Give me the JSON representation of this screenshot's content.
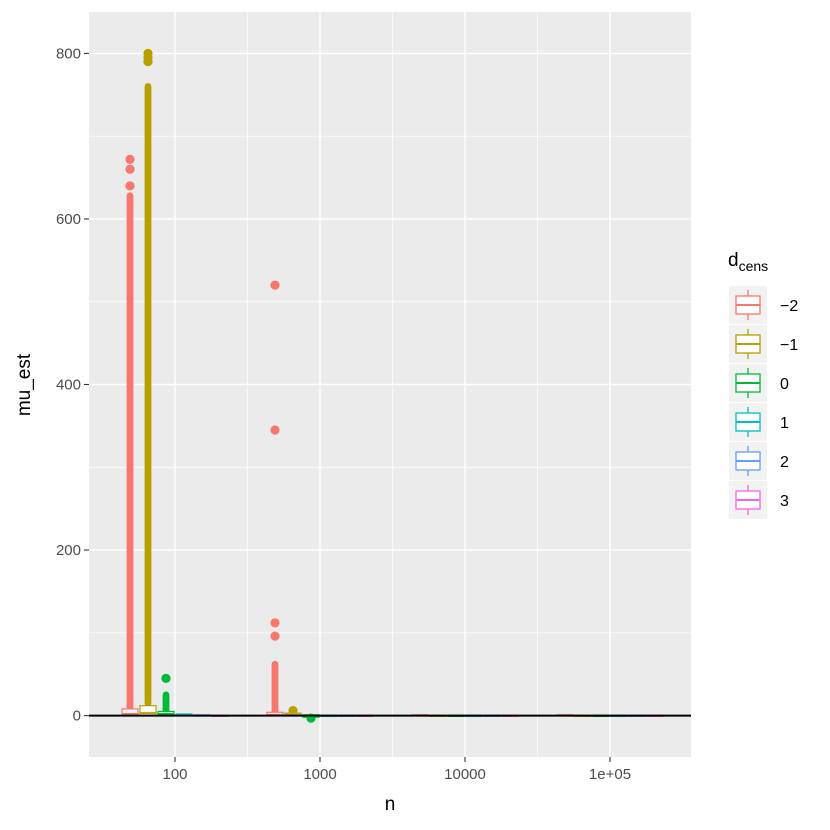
{
  "chart_data": {
    "type": "boxplot",
    "xlabel": "n",
    "ylabel": "mu_est",
    "x_scale": "log10",
    "x_ticks": [
      "100",
      "1000",
      "10000",
      "1e+05"
    ],
    "x_tick_values": [
      100,
      1000,
      10000,
      100000
    ],
    "ylim": [
      -50,
      850
    ],
    "y_ticks": [
      0,
      200,
      400,
      600,
      800
    ],
    "reference_line_y": 0,
    "grid": true,
    "legend": {
      "title_main": "d",
      "title_sub": "cens",
      "position": "right",
      "entries": [
        "−2",
        "−1",
        "0",
        "1",
        "2",
        "3"
      ]
    },
    "groups": [
      {
        "n": 100,
        "d_cens": "−2",
        "color": "#F8766D",
        "box_q1": 0,
        "box_median": 2,
        "box_q3": 8,
        "outlier_range": [
          10,
          628
        ],
        "outliers": [
          640,
          660,
          672
        ]
      },
      {
        "n": 100,
        "d_cens": "−1",
        "color": "#B79F00",
        "box_q1": 0,
        "box_median": 3,
        "box_q3": 12,
        "outlier_range": [
          15,
          760
        ],
        "outliers": [
          790,
          795,
          800
        ]
      },
      {
        "n": 100,
        "d_cens": "0",
        "color": "#00BA38",
        "box_q1": 0,
        "box_median": 2,
        "box_q3": 5,
        "outlier_range": [
          6,
          25
        ],
        "outliers": [
          45
        ]
      },
      {
        "n": 100,
        "d_cens": "1",
        "color": "#00BFC4",
        "box_q1": 0,
        "box_median": 1,
        "box_q3": 2,
        "outliers": []
      },
      {
        "n": 100,
        "d_cens": "2",
        "color": "#619CFF",
        "box_q1": 0,
        "box_median": 0,
        "box_q3": 1,
        "outliers": []
      },
      {
        "n": 100,
        "d_cens": "3",
        "color": "#F564E3",
        "box_q1": 0,
        "box_median": 0,
        "box_q3": 0,
        "outliers": []
      },
      {
        "n": 1000,
        "d_cens": "−2",
        "color": "#F8766D",
        "box_q1": 0,
        "box_median": 1,
        "box_q3": 4,
        "outlier_range": [
          5,
          62
        ],
        "outliers": [
          96,
          112,
          345,
          520
        ]
      },
      {
        "n": 1000,
        "d_cens": "−1",
        "color": "#B79F00",
        "box_q1": 0,
        "box_median": 1,
        "box_q3": 3,
        "outliers": [
          6
        ]
      },
      {
        "n": 1000,
        "d_cens": "0",
        "color": "#00BA38",
        "box_q1": -2,
        "box_median": 0,
        "box_q3": 1,
        "outliers": [
          -3
        ]
      },
      {
        "n": 1000,
        "d_cens": "1",
        "color": "#00BFC4",
        "box_q1": 0,
        "box_median": 0,
        "box_q3": 0,
        "outliers": []
      },
      {
        "n": 1000,
        "d_cens": "2",
        "color": "#619CFF",
        "box_q1": 0,
        "box_median": 0,
        "box_q3": 0,
        "outliers": []
      },
      {
        "n": 1000,
        "d_cens": "3",
        "color": "#F564E3",
        "box_q1": 0,
        "box_median": 0,
        "box_q3": 0,
        "outliers": []
      },
      {
        "n": 10000,
        "d_cens": "−2",
        "color": "#F8766D",
        "box_q1": 0,
        "box_median": 0,
        "box_q3": 1,
        "outliers": []
      },
      {
        "n": 10000,
        "d_cens": "−1",
        "color": "#B79F00",
        "box_q1": 0,
        "box_median": 0,
        "box_q3": 0,
        "outliers": []
      },
      {
        "n": 10000,
        "d_cens": "0",
        "color": "#00BA38",
        "box_q1": 0,
        "box_median": 0,
        "box_q3": 0,
        "outliers": []
      },
      {
        "n": 10000,
        "d_cens": "1",
        "color": "#00BFC4",
        "box_q1": 0,
        "box_median": 0,
        "box_q3": 0,
        "outliers": []
      },
      {
        "n": 10000,
        "d_cens": "2",
        "color": "#619CFF",
        "box_q1": 0,
        "box_median": 0,
        "box_q3": 0,
        "outliers": []
      },
      {
        "n": 10000,
        "d_cens": "3",
        "color": "#F564E3",
        "box_q1": 0,
        "box_median": 0,
        "box_q3": 0,
        "outliers": []
      },
      {
        "n": 100000,
        "d_cens": "−2",
        "color": "#F8766D",
        "box_q1": 0,
        "box_median": 0,
        "box_q3": 1,
        "outliers": []
      },
      {
        "n": 100000,
        "d_cens": "−1",
        "color": "#B79F00",
        "box_q1": 0,
        "box_median": 0,
        "box_q3": 0,
        "outliers": []
      },
      {
        "n": 100000,
        "d_cens": "0",
        "color": "#00BA38",
        "box_q1": 0,
        "box_median": 0,
        "box_q3": 0,
        "outliers": []
      },
      {
        "n": 100000,
        "d_cens": "1",
        "color": "#00BFC4",
        "box_q1": 0,
        "box_median": 0,
        "box_q3": 0,
        "outliers": []
      },
      {
        "n": 100000,
        "d_cens": "2",
        "color": "#619CFF",
        "box_q1": 0,
        "box_median": 0,
        "box_q3": 0,
        "outliers": []
      },
      {
        "n": 100000,
        "d_cens": "3",
        "color": "#F564E3",
        "box_q1": 0,
        "box_median": 0,
        "box_q3": 0,
        "outliers": []
      }
    ]
  }
}
